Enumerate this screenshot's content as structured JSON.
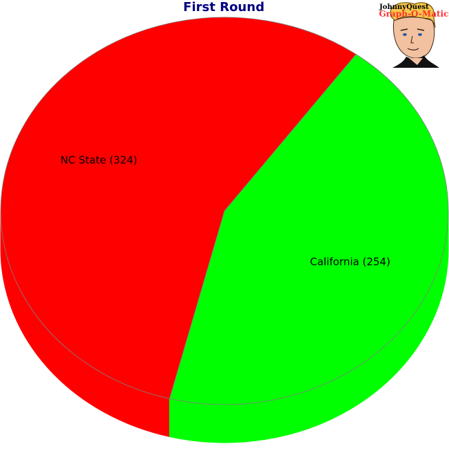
{
  "colors": {
    "background": "#ffffff",
    "title": "#000080",
    "outline": "#808080"
  },
  "logo": {
    "line1": "JohnnyQuest",
    "line2": "Graph-O-Matic"
  },
  "chart_data": {
    "type": "pie",
    "style": "3d",
    "title": "First Round",
    "slices": [
      {
        "label": "NC State (324)",
        "name": "NC State",
        "value": 324,
        "color": "#ff0000"
      },
      {
        "label": "California (254)",
        "name": "California",
        "value": 254,
        "color": "#00ff00"
      }
    ],
    "legend": "none"
  }
}
